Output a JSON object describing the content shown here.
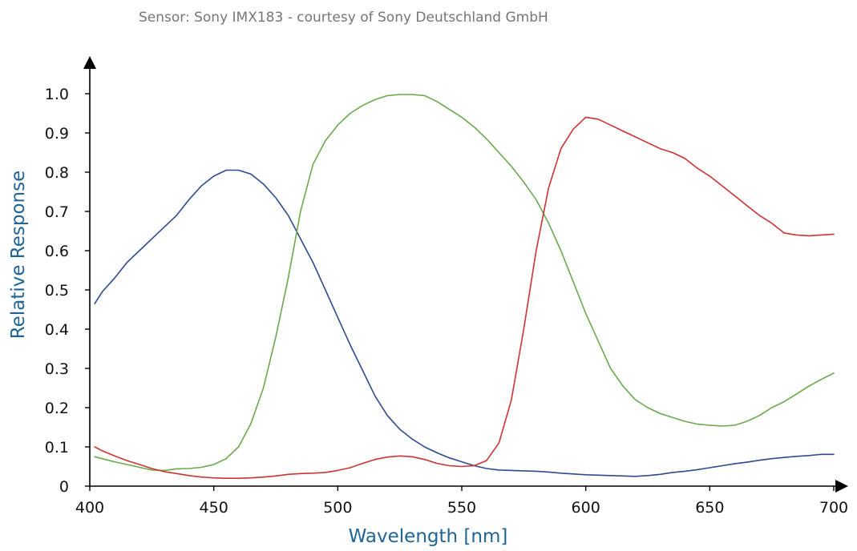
{
  "title": "Sensor: Sony IMX183 - courtesy of Sony Deutschland GmbH",
  "chart_data": {
    "type": "line",
    "title": "Sensor: Sony IMX183 - courtesy of Sony Deutschland GmbH",
    "xlabel": "Wavelength [nm]",
    "ylabel": "Relative Response",
    "xlim": [
      400,
      700
    ],
    "ylim": [
      0,
      1.0
    ],
    "x_ticks": [
      "400",
      "450",
      "500",
      "550",
      "600",
      "650",
      "700"
    ],
    "y_ticks": [
      "0",
      "0.1",
      "0.2",
      "0.3",
      "0.4",
      "0.5",
      "0.6",
      "0.7",
      "0.8",
      "0.9",
      "1.0"
    ],
    "grid": false,
    "legend": "none",
    "series": [
      {
        "color": "#2e4a8c",
        "points": [
          [
            402,
            0.465
          ],
          [
            405,
            0.495
          ],
          [
            410,
            0.53
          ],
          [
            415,
            0.57
          ],
          [
            420,
            0.6
          ],
          [
            425,
            0.63
          ],
          [
            430,
            0.66
          ],
          [
            435,
            0.69
          ],
          [
            440,
            0.73
          ],
          [
            445,
            0.765
          ],
          [
            450,
            0.79
          ],
          [
            455,
            0.805
          ],
          [
            460,
            0.805
          ],
          [
            465,
            0.795
          ],
          [
            470,
            0.77
          ],
          [
            475,
            0.735
          ],
          [
            480,
            0.69
          ],
          [
            485,
            0.63
          ],
          [
            490,
            0.57
          ],
          [
            495,
            0.5
          ],
          [
            500,
            0.43
          ],
          [
            505,
            0.36
          ],
          [
            510,
            0.295
          ],
          [
            515,
            0.23
          ],
          [
            520,
            0.18
          ],
          [
            525,
            0.145
          ],
          [
            530,
            0.12
          ],
          [
            535,
            0.1
          ],
          [
            540,
            0.085
          ],
          [
            545,
            0.072
          ],
          [
            550,
            0.062
          ],
          [
            555,
            0.052
          ],
          [
            560,
            0.045
          ],
          [
            565,
            0.041
          ],
          [
            570,
            0.04
          ],
          [
            575,
            0.039
          ],
          [
            580,
            0.038
          ],
          [
            585,
            0.036
          ],
          [
            590,
            0.033
          ],
          [
            595,
            0.031
          ],
          [
            600,
            0.029
          ],
          [
            605,
            0.028
          ],
          [
            610,
            0.027
          ],
          [
            615,
            0.026
          ],
          [
            620,
            0.025
          ],
          [
            625,
            0.027
          ],
          [
            630,
            0.03
          ],
          [
            635,
            0.035
          ],
          [
            640,
            0.038
          ],
          [
            645,
            0.042
          ],
          [
            650,
            0.047
          ],
          [
            655,
            0.052
          ],
          [
            660,
            0.057
          ],
          [
            665,
            0.061
          ],
          [
            670,
            0.066
          ],
          [
            675,
            0.07
          ],
          [
            680,
            0.073
          ],
          [
            685,
            0.076
          ],
          [
            690,
            0.078
          ],
          [
            695,
            0.081
          ],
          [
            700,
            0.081
          ]
        ]
      },
      {
        "color": "#6aa84f",
        "points": [
          [
            402,
            0.075
          ],
          [
            405,
            0.07
          ],
          [
            410,
            0.062
          ],
          [
            415,
            0.055
          ],
          [
            420,
            0.048
          ],
          [
            425,
            0.041
          ],
          [
            430,
            0.04
          ],
          [
            435,
            0.044
          ],
          [
            440,
            0.045
          ],
          [
            445,
            0.048
          ],
          [
            450,
            0.055
          ],
          [
            455,
            0.07
          ],
          [
            460,
            0.1
          ],
          [
            465,
            0.16
          ],
          [
            470,
            0.25
          ],
          [
            475,
            0.38
          ],
          [
            480,
            0.53
          ],
          [
            485,
            0.7
          ],
          [
            490,
            0.82
          ],
          [
            495,
            0.88
          ],
          [
            500,
            0.92
          ],
          [
            505,
            0.95
          ],
          [
            510,
            0.97
          ],
          [
            515,
            0.985
          ],
          [
            520,
            0.995
          ],
          [
            525,
            0.998
          ],
          [
            530,
            0.998
          ],
          [
            535,
            0.995
          ],
          [
            540,
            0.98
          ],
          [
            545,
            0.96
          ],
          [
            550,
            0.94
          ],
          [
            555,
            0.915
          ],
          [
            560,
            0.885
          ],
          [
            565,
            0.85
          ],
          [
            570,
            0.815
          ],
          [
            575,
            0.775
          ],
          [
            580,
            0.73
          ],
          [
            585,
            0.67
          ],
          [
            590,
            0.6
          ],
          [
            595,
            0.52
          ],
          [
            600,
            0.44
          ],
          [
            605,
            0.37
          ],
          [
            610,
            0.3
          ],
          [
            615,
            0.255
          ],
          [
            620,
            0.22
          ],
          [
            625,
            0.2
          ],
          [
            630,
            0.185
          ],
          [
            635,
            0.175
          ],
          [
            640,
            0.165
          ],
          [
            645,
            0.158
          ],
          [
            650,
            0.155
          ],
          [
            655,
            0.153
          ],
          [
            660,
            0.155
          ],
          [
            665,
            0.165
          ],
          [
            670,
            0.18
          ],
          [
            675,
            0.2
          ],
          [
            680,
            0.215
          ],
          [
            685,
            0.235
          ],
          [
            690,
            0.255
          ],
          [
            695,
            0.272
          ],
          [
            700,
            0.288
          ]
        ]
      },
      {
        "color": "#cc3333",
        "points": [
          [
            402,
            0.1
          ],
          [
            405,
            0.09
          ],
          [
            410,
            0.077
          ],
          [
            415,
            0.065
          ],
          [
            420,
            0.055
          ],
          [
            425,
            0.045
          ],
          [
            430,
            0.037
          ],
          [
            435,
            0.032
          ],
          [
            440,
            0.027
          ],
          [
            445,
            0.023
          ],
          [
            450,
            0.021
          ],
          [
            455,
            0.02
          ],
          [
            460,
            0.02
          ],
          [
            465,
            0.021
          ],
          [
            470,
            0.023
          ],
          [
            475,
            0.026
          ],
          [
            480,
            0.03
          ],
          [
            485,
            0.032
          ],
          [
            490,
            0.033
          ],
          [
            495,
            0.035
          ],
          [
            500,
            0.04
          ],
          [
            505,
            0.047
          ],
          [
            510,
            0.058
          ],
          [
            515,
            0.068
          ],
          [
            520,
            0.074
          ],
          [
            525,
            0.077
          ],
          [
            530,
            0.075
          ],
          [
            535,
            0.068
          ],
          [
            540,
            0.058
          ],
          [
            545,
            0.052
          ],
          [
            550,
            0.05
          ],
          [
            555,
            0.052
          ],
          [
            560,
            0.065
          ],
          [
            565,
            0.11
          ],
          [
            570,
            0.22
          ],
          [
            575,
            0.4
          ],
          [
            580,
            0.6
          ],
          [
            585,
            0.76
          ],
          [
            590,
            0.86
          ],
          [
            595,
            0.91
          ],
          [
            600,
            0.94
          ],
          [
            605,
            0.935
          ],
          [
            610,
            0.92
          ],
          [
            615,
            0.905
          ],
          [
            620,
            0.89
          ],
          [
            625,
            0.875
          ],
          [
            630,
            0.86
          ],
          [
            635,
            0.85
          ],
          [
            640,
            0.835
          ],
          [
            645,
            0.81
          ],
          [
            650,
            0.79
          ],
          [
            655,
            0.765
          ],
          [
            660,
            0.74
          ],
          [
            665,
            0.715
          ],
          [
            670,
            0.69
          ],
          [
            675,
            0.67
          ],
          [
            680,
            0.645
          ],
          [
            685,
            0.64
          ],
          [
            690,
            0.638
          ],
          [
            695,
            0.64
          ],
          [
            700,
            0.642
          ]
        ]
      }
    ]
  }
}
